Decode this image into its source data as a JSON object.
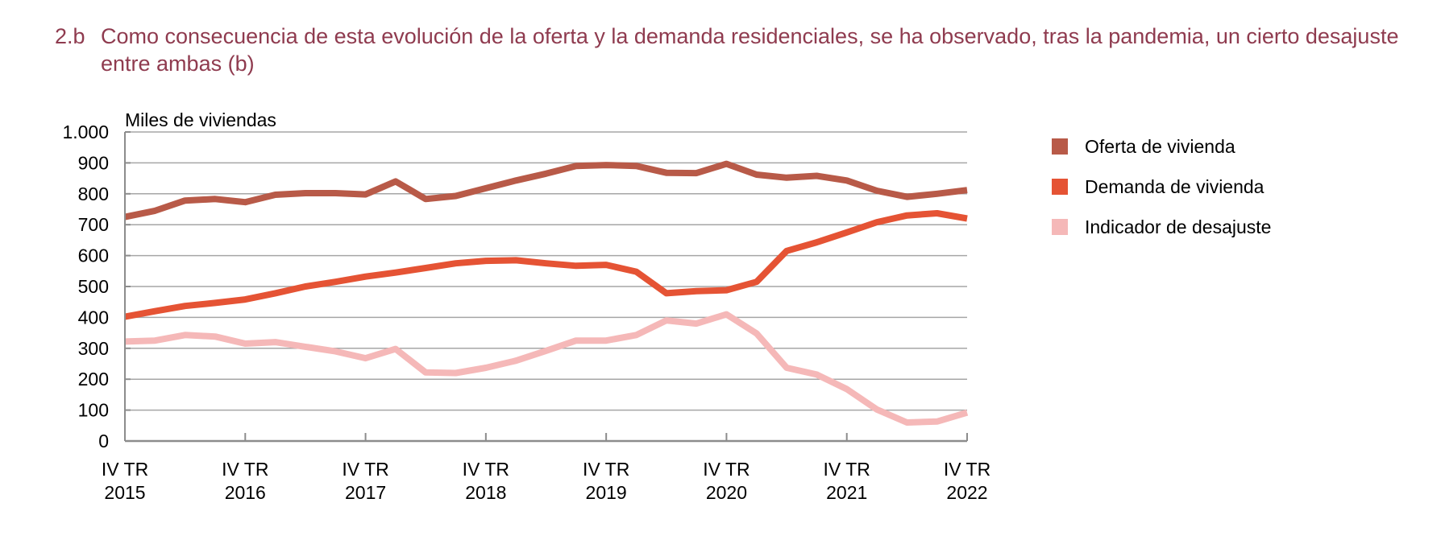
{
  "header": {
    "number": "2.b",
    "title": "Como consecuencia de esta evolución de la oferta y la demanda residenciales, se ha observado, tras la pandemia, un cierto desajuste entre ambas (b)"
  },
  "colors": {
    "title": "#8f3b4f",
    "oferta": "#b85a48",
    "demanda": "#e55334",
    "indicador": "#f5b8b8",
    "grid": "#a6a6a6",
    "axis": "#8c8c8c"
  },
  "chart_data": {
    "type": "line",
    "title": "",
    "ylabel": "Miles de viviendas",
    "xlabel": "",
    "ylim": [
      0,
      1000
    ],
    "yticks": [
      0,
      100,
      200,
      300,
      400,
      500,
      600,
      700,
      800,
      900,
      1000
    ],
    "ytick_labels": [
      "0",
      "100",
      "200",
      "300",
      "400",
      "500",
      "600",
      "700",
      "800",
      "900",
      "1.000"
    ],
    "grid": true,
    "legend_position": "right",
    "x": [
      "IV TR 2015",
      "I TR 2016",
      "II TR 2016",
      "III TR 2016",
      "IV TR 2016",
      "I TR 2017",
      "II TR 2017",
      "III TR 2017",
      "IV TR 2017",
      "I TR 2018",
      "II TR 2018",
      "III TR 2018",
      "IV TR 2018",
      "I TR 2019",
      "II TR 2019",
      "III TR 2019",
      "IV TR 2019",
      "I TR 2020",
      "II TR 2020",
      "III TR 2020",
      "IV TR 2020",
      "I TR 2021",
      "II TR 2021",
      "III TR 2021",
      "IV TR 2021",
      "I TR 2022",
      "II TR 2022",
      "III TR 2022",
      "IV TR 2022"
    ],
    "xticks": [
      {
        "index": 0,
        "line1": "IV TR",
        "line2": "2015"
      },
      {
        "index": 4,
        "line1": "IV TR",
        "line2": "2016"
      },
      {
        "index": 8,
        "line1": "IV TR",
        "line2": "2017"
      },
      {
        "index": 12,
        "line1": "IV TR",
        "line2": "2018"
      },
      {
        "index": 16,
        "line1": "IV TR",
        "line2": "2019"
      },
      {
        "index": 20,
        "line1": "IV TR",
        "line2": "2020"
      },
      {
        "index": 24,
        "line1": "IV TR",
        "line2": "2021"
      },
      {
        "index": 28,
        "line1": "IV TR",
        "line2": "2022"
      }
    ],
    "series": [
      {
        "name": "Oferta de vivienda",
        "key": "oferta",
        "values": [
          725,
          745,
          778,
          783,
          773,
          797,
          802,
          802,
          798,
          840,
          783,
          793,
          818,
          843,
          865,
          890,
          893,
          890,
          868,
          867,
          897,
          862,
          852,
          858,
          843,
          810,
          790,
          800,
          812
        ]
      },
      {
        "name": "Demanda de vivienda",
        "key": "demanda",
        "values": [
          402,
          420,
          437,
          447,
          458,
          478,
          500,
          515,
          532,
          545,
          560,
          575,
          583,
          585,
          575,
          567,
          570,
          548,
          478,
          485,
          488,
          515,
          615,
          643,
          675,
          708,
          730,
          737,
          720
        ]
      },
      {
        "name": "Indicador de desajuste",
        "key": "indicador",
        "values": [
          322,
          325,
          343,
          338,
          315,
          320,
          305,
          290,
          268,
          298,
          222,
          220,
          237,
          260,
          292,
          325,
          325,
          343,
          390,
          380,
          410,
          348,
          237,
          215,
          168,
          102,
          60,
          63,
          92
        ]
      }
    ]
  }
}
